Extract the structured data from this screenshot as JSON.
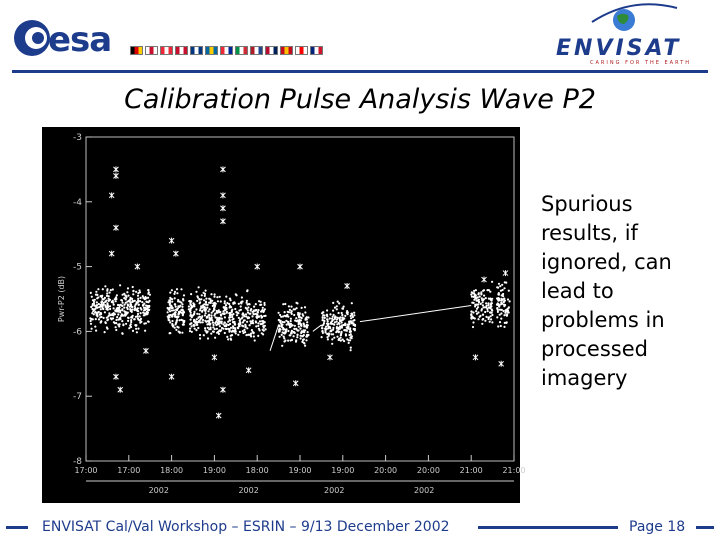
{
  "header": {
    "esa_logo_text": "esa",
    "envisat_logo_text": "ENVISAT",
    "envisat_tagline": "CARING FOR THE EARTH",
    "flag_colors": [
      [
        "#000000",
        "#dd0000",
        "#ffce00"
      ],
      [
        "#ffffff",
        "#c8102e",
        "#ffffff"
      ],
      [
        "#ed2939",
        "#ffffff",
        "#ed2939"
      ],
      [
        "#c8102e",
        "#ffffff",
        "#c8102e"
      ],
      [
        "#003580",
        "#ffffff",
        "#003580"
      ],
      [
        "#006aa7",
        "#fecc00",
        "#006aa7"
      ],
      [
        "#ed2939",
        "#ffffff",
        "#002395"
      ],
      [
        "#009246",
        "#ffffff",
        "#ce2b37"
      ],
      [
        "#ae1c28",
        "#ffffff",
        "#21468b"
      ],
      [
        "#ba0c2f",
        "#ffffff",
        "#00205b"
      ],
      [
        "#c60b1e",
        "#ffc400",
        "#c60b1e"
      ],
      [
        "#ffffff",
        "#ff0000",
        "#ffffff"
      ],
      [
        "#00247d",
        "#ffffff",
        "#cf142b"
      ]
    ],
    "accent_color": "#1e3c8c"
  },
  "title": "Calibration Pulse Analysis Wave P2",
  "note": "Spurious results, if ignored, can lead to problems in processed imagery",
  "footer": {
    "text": "ENVISAT Cal/Val Workshop – ESRIN – 9/13 December 2002",
    "page": "Page 18"
  },
  "chart_data": {
    "type": "scatter",
    "title": "",
    "xlabel": "",
    "ylabel": "Pwr-P2 (dB)",
    "ylim": [
      -8,
      -3
    ],
    "y_ticks": [
      "-3",
      "-4",
      "-5",
      "-6",
      "-7",
      "-8"
    ],
    "x_tick_labels": [
      "17:00",
      "17:00",
      "18:00",
      "19:00",
      "18:00",
      "19:00",
      "19:00",
      "20:00",
      "20:00",
      "21:00",
      "21:00"
    ],
    "x_tick_positions": [
      0,
      0.1,
      0.2,
      0.3,
      0.4,
      0.5,
      0.6,
      0.7,
      0.8,
      0.9,
      1.0
    ],
    "x_date_labels": [
      "2002",
      "2002",
      "2002",
      "2002"
    ],
    "x_date_positions": [
      0.17,
      0.38,
      0.58,
      0.79
    ],
    "background": "#000000",
    "point_color": "#ffffff",
    "clusters": [
      {
        "x_range": [
          0.01,
          0.15
        ],
        "y_center": -5.65,
        "spread": 0.45,
        "n": 380
      },
      {
        "x_range": [
          0.19,
          0.23
        ],
        "y_center": -5.7,
        "spread": 0.45,
        "n": 120
      },
      {
        "x_range": [
          0.24,
          0.29
        ],
        "y_center": -5.75,
        "spread": 0.5,
        "n": 140
      },
      {
        "x_range": [
          0.29,
          0.33
        ],
        "y_center": -5.8,
        "spread": 0.5,
        "n": 120
      },
      {
        "x_range": [
          0.33,
          0.42
        ],
        "y_center": -5.8,
        "spread": 0.5,
        "n": 220
      },
      {
        "x_range": [
          0.45,
          0.52
        ],
        "y_center": -5.9,
        "spread": 0.45,
        "n": 180
      },
      {
        "x_range": [
          0.55,
          0.63
        ],
        "y_center": -5.9,
        "spread": 0.45,
        "n": 200
      },
      {
        "x_range": [
          0.9,
          0.95
        ],
        "y_center": -5.6,
        "spread": 0.45,
        "n": 120
      },
      {
        "x_range": [
          0.96,
          0.99
        ],
        "y_center": -5.6,
        "spread": 0.45,
        "n": 80
      }
    ],
    "outliers": [
      {
        "x": 0.07,
        "y": -3.5
      },
      {
        "x": 0.07,
        "y": -3.6
      },
      {
        "x": 0.06,
        "y": -3.9
      },
      {
        "x": 0.07,
        "y": -4.4
      },
      {
        "x": 0.06,
        "y": -4.8
      },
      {
        "x": 0.07,
        "y": -6.7
      },
      {
        "x": 0.08,
        "y": -6.9
      },
      {
        "x": 0.12,
        "y": -5.0
      },
      {
        "x": 0.14,
        "y": -6.3
      },
      {
        "x": 0.2,
        "y": -4.6
      },
      {
        "x": 0.21,
        "y": -4.8
      },
      {
        "x": 0.2,
        "y": -6.7
      },
      {
        "x": 0.32,
        "y": -3.5
      },
      {
        "x": 0.32,
        "y": -3.9
      },
      {
        "x": 0.32,
        "y": -4.1
      },
      {
        "x": 0.32,
        "y": -4.3
      },
      {
        "x": 0.31,
        "y": -7.3
      },
      {
        "x": 0.32,
        "y": -6.9
      },
      {
        "x": 0.3,
        "y": -6.4
      },
      {
        "x": 0.38,
        "y": -6.6
      },
      {
        "x": 0.4,
        "y": -5.0
      },
      {
        "x": 0.49,
        "y": -6.8
      },
      {
        "x": 0.5,
        "y": -5.0
      },
      {
        "x": 0.57,
        "y": -6.4
      },
      {
        "x": 0.61,
        "y": -5.3
      },
      {
        "x": 0.91,
        "y": -6.4
      },
      {
        "x": 0.93,
        "y": -5.2
      },
      {
        "x": 0.97,
        "y": -6.5
      },
      {
        "x": 0.98,
        "y": -5.1
      }
    ],
    "connector_lines": [
      [
        {
          "x": 0.43,
          "y": -6.3
        },
        {
          "x": 0.45,
          "y": -5.9
        }
      ],
      [
        {
          "x": 0.53,
          "y": -6.0
        },
        {
          "x": 0.55,
          "y": -5.9
        }
      ],
      [
        {
          "x": 0.64,
          "y": -5.85
        },
        {
          "x": 0.9,
          "y": -5.6
        }
      ]
    ]
  }
}
